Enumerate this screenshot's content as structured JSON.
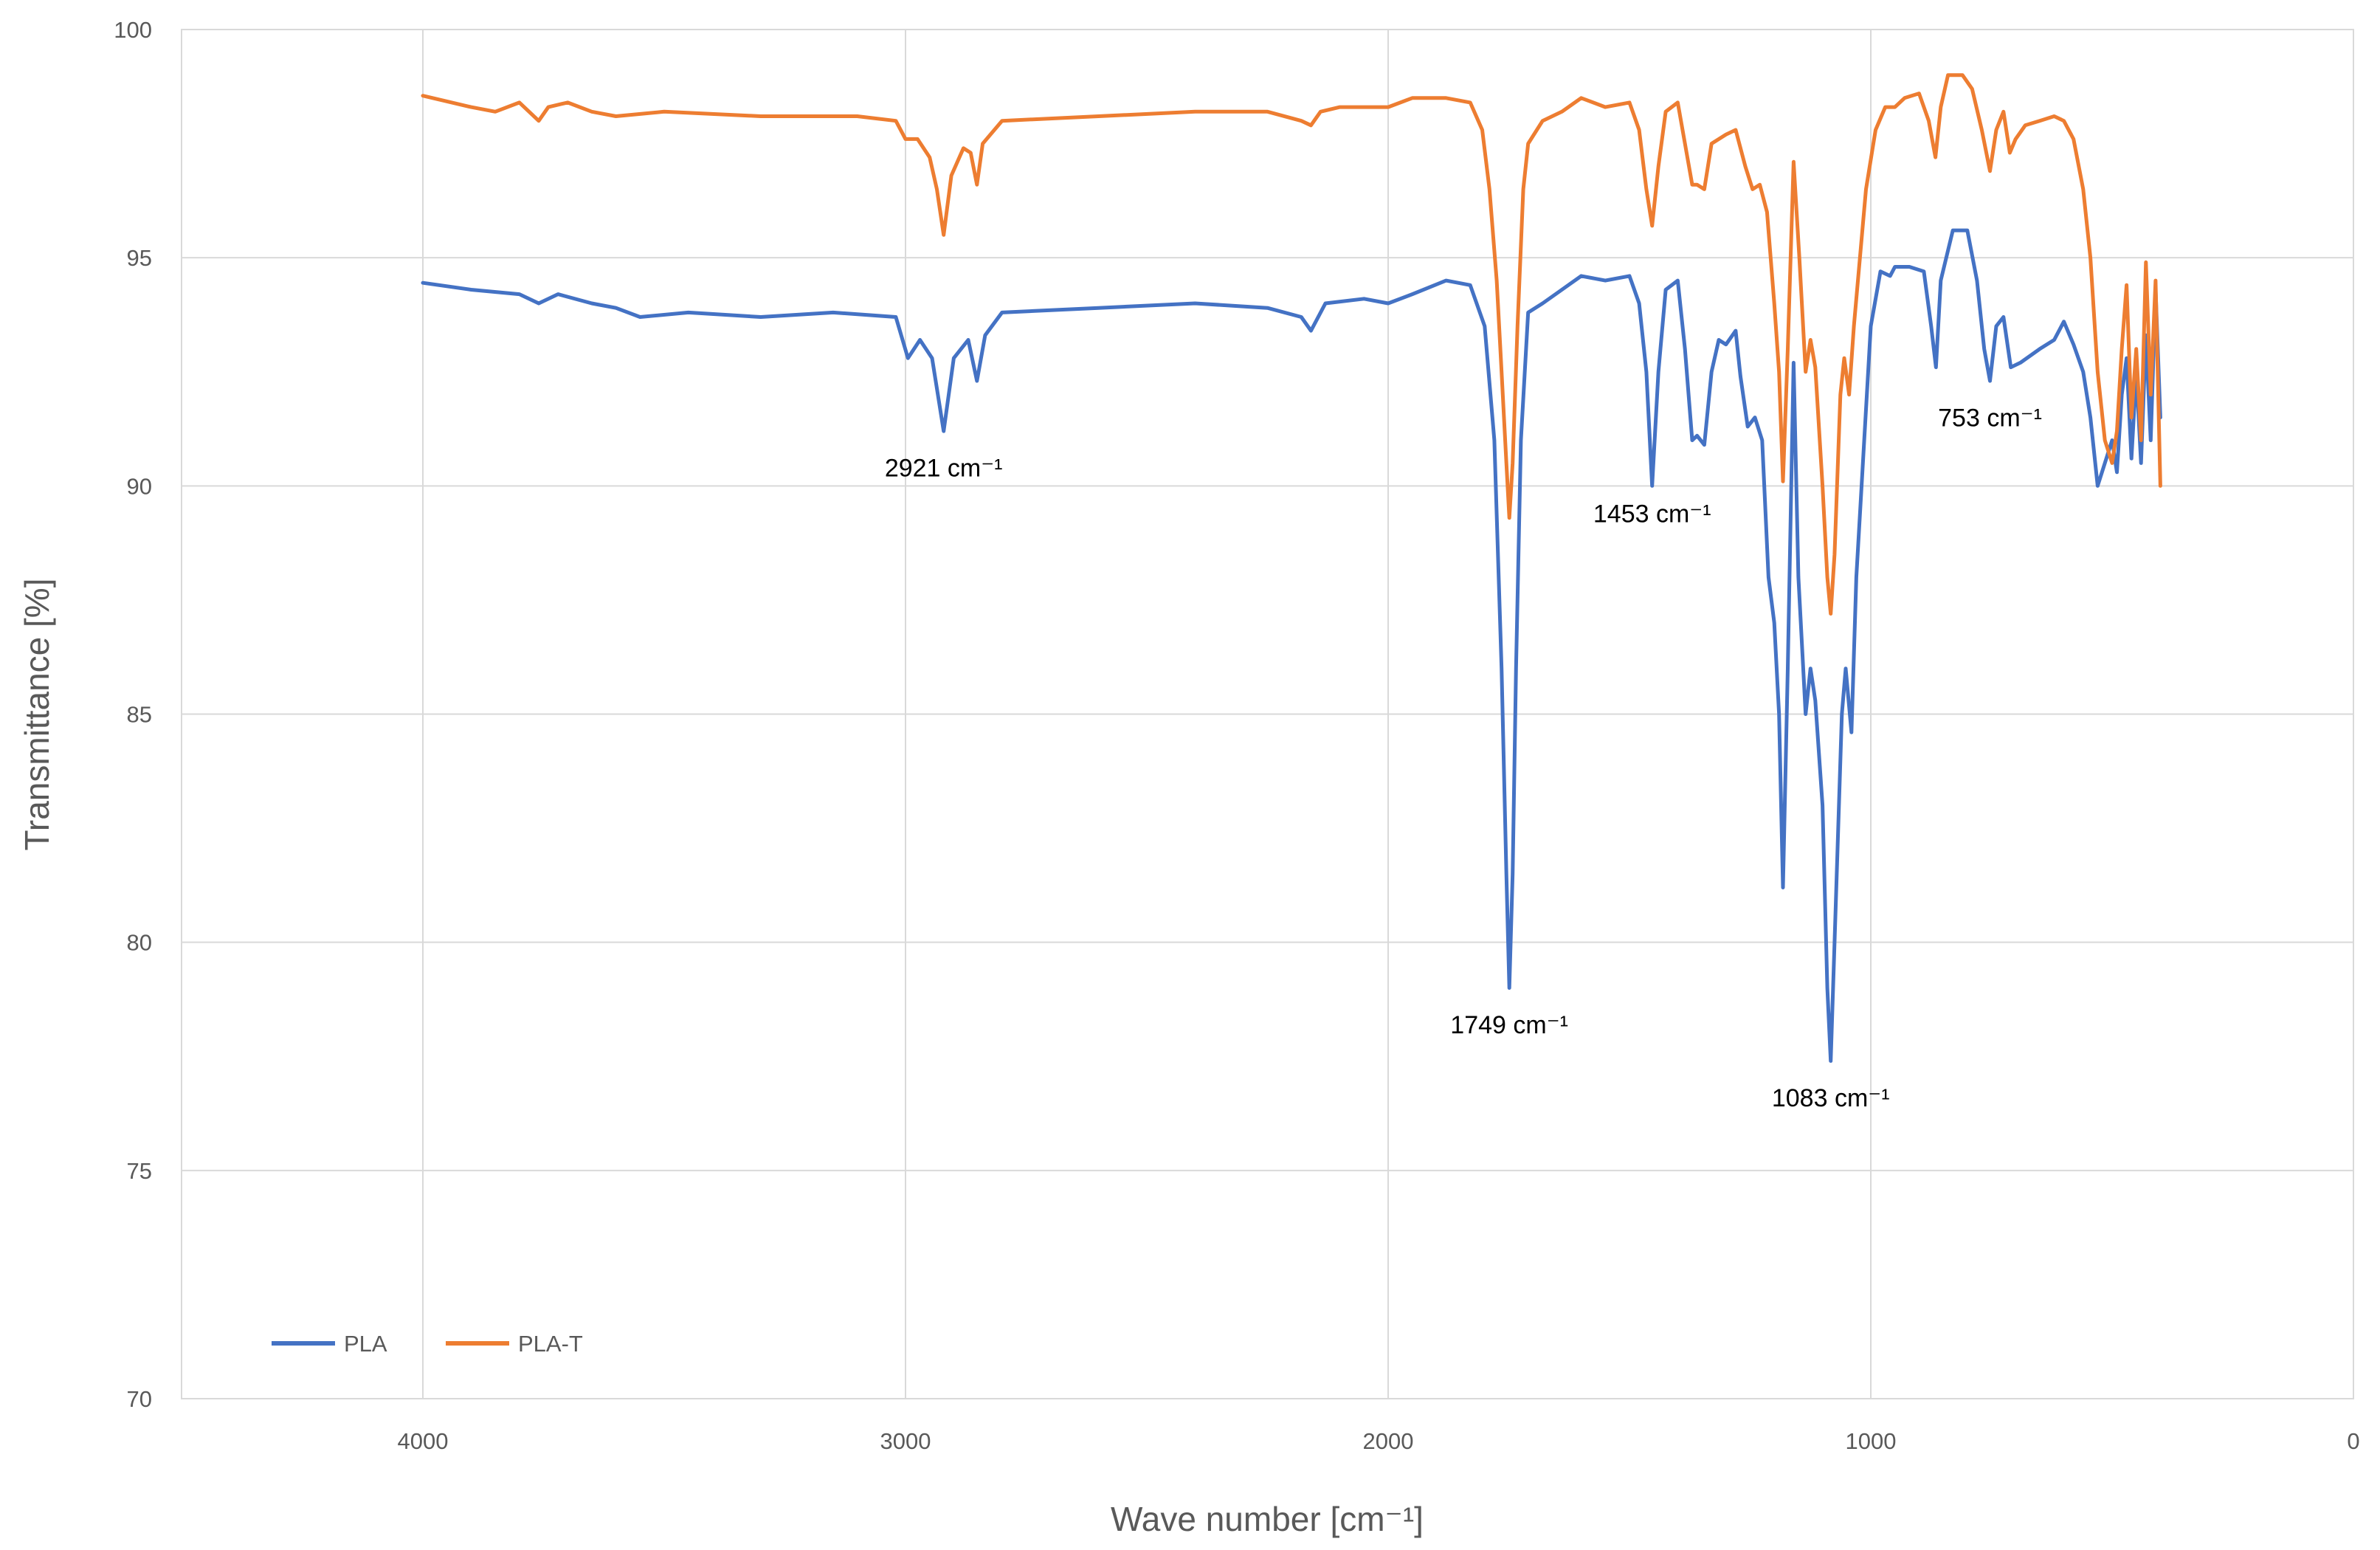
{
  "chart_data": {
    "type": "line",
    "title": "",
    "xlabel": "Wave number [cm⁻¹]",
    "ylabel": "Transmittance [%]",
    "xlim": [
      4500,
      0
    ],
    "ylim": [
      70,
      100
    ],
    "x_reversed": true,
    "grid": true,
    "legend_position": "bottom-left",
    "x_ticks": [
      4000,
      3000,
      2000,
      1000,
      0
    ],
    "y_ticks": [
      70,
      75,
      80,
      85,
      90,
      95,
      100
    ],
    "series": [
      {
        "name": "PLA",
        "color": "#4472C4",
        "points": [
          [
            4000,
            94.45
          ],
          [
            3900,
            94.3
          ],
          [
            3800,
            94.2
          ],
          [
            3760,
            94.0
          ],
          [
            3720,
            94.2
          ],
          [
            3650,
            94.0
          ],
          [
            3600,
            93.9
          ],
          [
            3550,
            93.7
          ],
          [
            3450,
            93.8
          ],
          [
            3300,
            93.7
          ],
          [
            3150,
            93.8
          ],
          [
            3020,
            93.7
          ],
          [
            2995,
            92.8
          ],
          [
            2970,
            93.2
          ],
          [
            2945,
            92.8
          ],
          [
            2921,
            91.2
          ],
          [
            2900,
            92.8
          ],
          [
            2870,
            93.2
          ],
          [
            2852,
            92.3
          ],
          [
            2835,
            93.3
          ],
          [
            2800,
            93.8
          ],
          [
            2600,
            93.9
          ],
          [
            2400,
            94.0
          ],
          [
            2250,
            93.9
          ],
          [
            2180,
            93.7
          ],
          [
            2160,
            93.4
          ],
          [
            2130,
            94.0
          ],
          [
            2050,
            94.1
          ],
          [
            2000,
            94.0
          ],
          [
            1950,
            94.2
          ],
          [
            1880,
            94.5
          ],
          [
            1830,
            94.4
          ],
          [
            1800,
            93.5
          ],
          [
            1780,
            91.0
          ],
          [
            1765,
            86.0
          ],
          [
            1755,
            81.5
          ],
          [
            1749,
            79.0
          ],
          [
            1742,
            81.5
          ],
          [
            1735,
            86.0
          ],
          [
            1725,
            91.0
          ],
          [
            1710,
            93.8
          ],
          [
            1680,
            94.0
          ],
          [
            1640,
            94.3
          ],
          [
            1600,
            94.6
          ],
          [
            1550,
            94.5
          ],
          [
            1500,
            94.6
          ],
          [
            1480,
            94.0
          ],
          [
            1465,
            92.5
          ],
          [
            1453,
            90.0
          ],
          [
            1440,
            92.5
          ],
          [
            1425,
            94.3
          ],
          [
            1400,
            94.5
          ],
          [
            1385,
            93.0
          ],
          [
            1370,
            91.0
          ],
          [
            1360,
            91.1
          ],
          [
            1345,
            90.9
          ],
          [
            1330,
            92.5
          ],
          [
            1315,
            93.2
          ],
          [
            1300,
            93.1
          ],
          [
            1280,
            93.4
          ],
          [
            1270,
            92.4
          ],
          [
            1255,
            91.3
          ],
          [
            1240,
            91.5
          ],
          [
            1225,
            91.0
          ],
          [
            1212,
            88.0
          ],
          [
            1200,
            87.0
          ],
          [
            1190,
            85.0
          ],
          [
            1182,
            81.2
          ],
          [
            1172,
            86.0
          ],
          [
            1160,
            92.7
          ],
          [
            1150,
            88.0
          ],
          [
            1135,
            85.0
          ],
          [
            1125,
            86.0
          ],
          [
            1115,
            85.3
          ],
          [
            1100,
            83.0
          ],
          [
            1090,
            79.0
          ],
          [
            1083,
            77.4
          ],
          [
            1075,
            80.0
          ],
          [
            1060,
            85.0
          ],
          [
            1052,
            86.0
          ],
          [
            1040,
            84.6
          ],
          [
            1030,
            88.0
          ],
          [
            1000,
            93.5
          ],
          [
            980,
            94.7
          ],
          [
            960,
            94.6
          ],
          [
            950,
            94.8
          ],
          [
            920,
            94.8
          ],
          [
            890,
            94.7
          ],
          [
            875,
            93.5
          ],
          [
            865,
            92.6
          ],
          [
            855,
            94.5
          ],
          [
            830,
            95.6
          ],
          [
            800,
            95.6
          ],
          [
            780,
            94.5
          ],
          [
            765,
            93.0
          ],
          [
            753,
            92.3
          ],
          [
            740,
            93.5
          ],
          [
            725,
            93.7
          ],
          [
            710,
            92.6
          ],
          [
            690,
            92.7
          ],
          [
            650,
            93.0
          ],
          [
            620,
            93.2
          ],
          [
            600,
            93.6
          ],
          [
            580,
            93.1
          ],
          [
            560,
            92.5
          ],
          [
            545,
            91.5
          ],
          [
            530,
            90.0
          ],
          [
            515,
            90.5
          ],
          [
            500,
            91.0
          ],
          [
            490,
            90.3
          ],
          [
            480,
            92.0
          ],
          [
            470,
            92.8
          ],
          [
            460,
            90.6
          ],
          [
            450,
            92.5
          ],
          [
            440,
            90.5
          ],
          [
            430,
            93.3
          ],
          [
            420,
            91.0
          ],
          [
            410,
            94.3
          ],
          [
            400,
            91.5
          ]
        ]
      },
      {
        "name": "PLA-T",
        "color": "#ED7D31",
        "points": [
          [
            4000,
            98.55
          ],
          [
            3900,
            98.3
          ],
          [
            3850,
            98.2
          ],
          [
            3800,
            98.4
          ],
          [
            3760,
            98.0
          ],
          [
            3740,
            98.3
          ],
          [
            3700,
            98.4
          ],
          [
            3650,
            98.2
          ],
          [
            3600,
            98.1
          ],
          [
            3500,
            98.2
          ],
          [
            3300,
            98.1
          ],
          [
            3100,
            98.1
          ],
          [
            3020,
            98.0
          ],
          [
            3000,
            97.6
          ],
          [
            2975,
            97.6
          ],
          [
            2950,
            97.2
          ],
          [
            2935,
            96.5
          ],
          [
            2921,
            95.5
          ],
          [
            2905,
            96.8
          ],
          [
            2880,
            97.4
          ],
          [
            2865,
            97.3
          ],
          [
            2852,
            96.6
          ],
          [
            2840,
            97.5
          ],
          [
            2800,
            98.0
          ],
          [
            2600,
            98.1
          ],
          [
            2400,
            98.2
          ],
          [
            2250,
            98.2
          ],
          [
            2180,
            98.0
          ],
          [
            2160,
            97.9
          ],
          [
            2140,
            98.2
          ],
          [
            2100,
            98.3
          ],
          [
            2000,
            98.3
          ],
          [
            1950,
            98.5
          ],
          [
            1880,
            98.5
          ],
          [
            1830,
            98.4
          ],
          [
            1805,
            97.8
          ],
          [
            1790,
            96.5
          ],
          [
            1775,
            94.5
          ],
          [
            1765,
            92.5
          ],
          [
            1755,
            90.5
          ],
          [
            1749,
            89.3
          ],
          [
            1742,
            90.5
          ],
          [
            1732,
            93.5
          ],
          [
            1720,
            96.5
          ],
          [
            1710,
            97.5
          ],
          [
            1680,
            98.0
          ],
          [
            1640,
            98.2
          ],
          [
            1600,
            98.5
          ],
          [
            1550,
            98.3
          ],
          [
            1500,
            98.4
          ],
          [
            1480,
            97.8
          ],
          [
            1465,
            96.5
          ],
          [
            1453,
            95.7
          ],
          [
            1440,
            97.0
          ],
          [
            1425,
            98.2
          ],
          [
            1400,
            98.4
          ],
          [
            1385,
            97.5
          ],
          [
            1370,
            96.6
          ],
          [
            1360,
            96.6
          ],
          [
            1345,
            96.5
          ],
          [
            1330,
            97.5
          ],
          [
            1300,
            97.7
          ],
          [
            1280,
            97.8
          ],
          [
            1260,
            97.0
          ],
          [
            1245,
            96.5
          ],
          [
            1230,
            96.6
          ],
          [
            1215,
            96.0
          ],
          [
            1200,
            94.0
          ],
          [
            1190,
            92.5
          ],
          [
            1182,
            90.1
          ],
          [
            1172,
            93.0
          ],
          [
            1160,
            97.1
          ],
          [
            1148,
            95.0
          ],
          [
            1135,
            92.5
          ],
          [
            1125,
            93.2
          ],
          [
            1115,
            92.6
          ],
          [
            1100,
            90.0
          ],
          [
            1090,
            88.0
          ],
          [
            1083,
            87.2
          ],
          [
            1075,
            88.5
          ],
          [
            1063,
            92.0
          ],
          [
            1055,
            92.8
          ],
          [
            1045,
            92.0
          ],
          [
            1035,
            93.5
          ],
          [
            1010,
            96.5
          ],
          [
            990,
            97.8
          ],
          [
            970,
            98.3
          ],
          [
            950,
            98.3
          ],
          [
            930,
            98.5
          ],
          [
            900,
            98.6
          ],
          [
            880,
            98.0
          ],
          [
            866,
            97.2
          ],
          [
            855,
            98.3
          ],
          [
            840,
            99.0
          ],
          [
            810,
            99.0
          ],
          [
            790,
            98.7
          ],
          [
            770,
            97.8
          ],
          [
            753,
            96.9
          ],
          [
            740,
            97.8
          ],
          [
            725,
            98.2
          ],
          [
            712,
            97.3
          ],
          [
            700,
            97.6
          ],
          [
            680,
            97.9
          ],
          [
            650,
            98.0
          ],
          [
            620,
            98.1
          ],
          [
            600,
            98.0
          ],
          [
            580,
            97.6
          ],
          [
            560,
            96.5
          ],
          [
            545,
            95.0
          ],
          [
            530,
            92.5
          ],
          [
            515,
            91.0
          ],
          [
            500,
            90.5
          ],
          [
            490,
            91.2
          ],
          [
            480,
            93.0
          ],
          [
            470,
            94.4
          ],
          [
            460,
            91.5
          ],
          [
            450,
            93.0
          ],
          [
            440,
            91.0
          ],
          [
            430,
            94.9
          ],
          [
            420,
            92.0
          ],
          [
            410,
            94.5
          ],
          [
            400,
            90.0
          ]
        ]
      }
    ],
    "annotations": [
      {
        "text": "2921 cm⁻¹",
        "x": 2921,
        "y": 90.4
      },
      {
        "text": "1749 cm⁻¹",
        "x": 1749,
        "y": 78.2
      },
      {
        "text": "1453 cm⁻¹",
        "x": 1453,
        "y": 89.4
      },
      {
        "text": "1083 cm⁻¹",
        "x": 1083,
        "y": 76.6
      },
      {
        "text": "753 cm⁻¹",
        "x": 753,
        "y": 91.5
      }
    ],
    "legend": [
      {
        "label": "PLA",
        "color": "#4472C4"
      },
      {
        "label": "PLA-T",
        "color": "#ED7D31"
      }
    ]
  }
}
